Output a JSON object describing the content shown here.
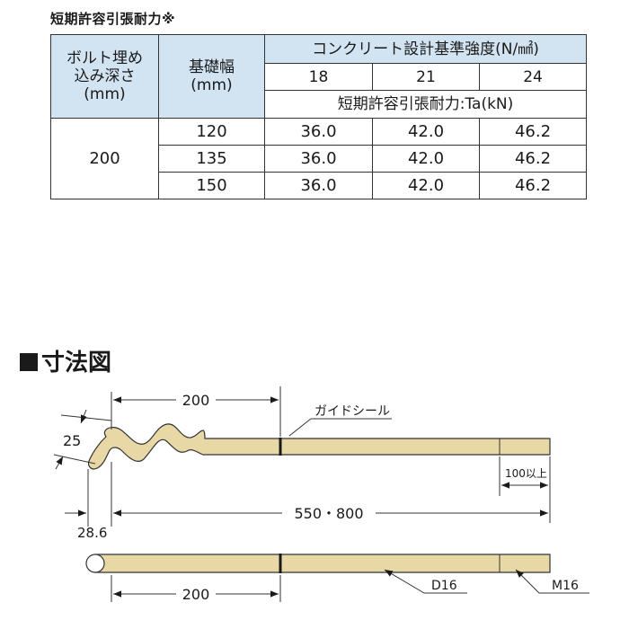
{
  "table": {
    "title": "短期許容引張耐力※",
    "col_depth": [
      "ボルト埋め",
      "込み深さ",
      "(mm)"
    ],
    "col_width": [
      "基礎幅",
      "(mm)"
    ],
    "col_strength_header": "コンクリート設計基準強度(N/㎟)",
    "strengths": [
      "18",
      "21",
      "24"
    ],
    "capacity_header": "短期許容引張耐力:Ta(kN)",
    "depth_value": "200",
    "rows": [
      {
        "width": "120",
        "values": [
          "36.0",
          "42.0",
          "46.2"
        ]
      },
      {
        "width": "135",
        "values": [
          "36.0",
          "42.0",
          "46.2"
        ]
      },
      {
        "width": "150",
        "values": [
          "36.0",
          "42.0",
          "46.2"
        ]
      }
    ]
  },
  "drawing": {
    "title": "寸法図",
    "dim_wave_length": "200",
    "dim_hook": "25",
    "dim_offset": "28.6",
    "dim_total": "550・800",
    "dim_thread": "100以上",
    "label_guide_seal": "ガイドシール",
    "dim_bottom": "200",
    "label_d16": "D16",
    "label_m16": "M16",
    "colors": {
      "rod_fill": "#e8d8a6",
      "rod_stroke": "#333333",
      "table_header_bg": "#d2e3f2"
    }
  }
}
